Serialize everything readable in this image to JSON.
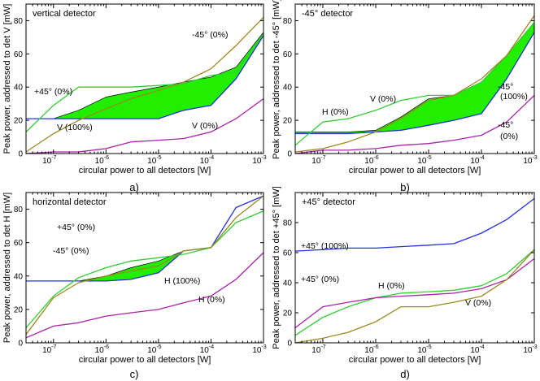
{
  "colors": {
    "blue": "#2233dd",
    "green": "#33cc33",
    "olive": "#998a22",
    "purple": "#aa22aa",
    "fill": "#22ee00"
  },
  "chart_data": [
    {
      "type": "line",
      "panel_label": "a)",
      "title": "vertical detector",
      "xlabel": "circular power to all detectors [W]",
      "ylabel": "Peak power, addressed to det V [mW]",
      "x_scale": "log",
      "xlim": [
        3e-08,
        0.001
      ],
      "ylim": [
        0,
        90
      ],
      "yticks": [
        0,
        20,
        40,
        60,
        80
      ],
      "xticks": [
        {
          "base": "10",
          "exp": "-7"
        },
        {
          "base": "10",
          "exp": "-6"
        },
        {
          "base": "10",
          "exp": "-5"
        },
        {
          "base": "10",
          "exp": "-4"
        },
        {
          "base": "10",
          "exp": "-3"
        }
      ],
      "x": [
        3e-08,
        1e-07,
        3e-07,
        1e-06,
        3e-06,
        1e-05,
        3e-05,
        0.0001,
        0.0003,
        0.001
      ],
      "series": [
        {
          "name": "V (100%)",
          "color": "blue",
          "values": [
            21,
            21,
            21,
            21,
            21,
            21,
            26,
            29,
            45,
            71
          ]
        },
        {
          "name": "+45° (0%)",
          "color": "green",
          "values": [
            13,
            29,
            40,
            40,
            40,
            41,
            42,
            47,
            49,
            72
          ]
        },
        {
          "name": "-45° (0%)",
          "color": "olive",
          "values": [
            1,
            12,
            20,
            27,
            33,
            38,
            43,
            51,
            65,
            82
          ]
        },
        {
          "name": "V (0%)",
          "color": "purple",
          "values": [
            0,
            1,
            1,
            3,
            7,
            8,
            9,
            13,
            21,
            33
          ]
        }
      ],
      "fill_between": {
        "upper": [
          21,
          21,
          26,
          34,
          37,
          40,
          43,
          46,
          52,
          73
        ],
        "lower": [
          21,
          21,
          21,
          21,
          21,
          21,
          26,
          29,
          45,
          71
        ]
      },
      "annotations": [
        "V (100%)",
        "+45° (0%)",
        "-45° (0%)",
        "V (0%)"
      ]
    },
    {
      "type": "line",
      "panel_label": "b)",
      "title": "-45° detector",
      "xlabel": "circular power to all detectors [W]",
      "ylabel": "Peak power, addressed to det -45° [mW]",
      "x_scale": "log",
      "xlim": [
        3e-08,
        0.001
      ],
      "ylim": [
        0,
        90
      ],
      "yticks": [
        0,
        20,
        40,
        60,
        80
      ],
      "xticks": [
        {
          "base": "10",
          "exp": "-7"
        },
        {
          "base": "10",
          "exp": "-6"
        },
        {
          "base": "10",
          "exp": "-5"
        },
        {
          "base": "10",
          "exp": "-4"
        },
        {
          "base": "10",
          "exp": "-3"
        }
      ],
      "x": [
        3e-08,
        1e-07,
        3e-07,
        1e-06,
        3e-06,
        1e-05,
        3e-05,
        0.0001,
        0.0003,
        0.001
      ],
      "series": [
        {
          "name": "-45° (100%)",
          "color": "blue",
          "values": [
            12,
            12,
            12,
            13,
            14,
            17,
            20,
            24,
            45,
            73
          ]
        },
        {
          "name": "H (0%)",
          "color": "green",
          "values": [
            5,
            19,
            21,
            26,
            32,
            35,
            35,
            43,
            59,
            79
          ]
        },
        {
          "name": "V (0%)",
          "color": "olive",
          "values": [
            1,
            3,
            7,
            13,
            21,
            32,
            35,
            45,
            59,
            83
          ]
        },
        {
          "name": "-45° (0%)",
          "color": "purple",
          "values": [
            0,
            2,
            2,
            3,
            5,
            6,
            8,
            11,
            19,
            35
          ]
        }
      ],
      "fill_between": {
        "upper": [
          13,
          13,
          13,
          14,
          22,
          33,
          35,
          43,
          59,
          79
        ],
        "lower": [
          12,
          12,
          12,
          13,
          14,
          17,
          20,
          24,
          45,
          73
        ]
      },
      "annotations": [
        "H (0%)",
        "V (0%)",
        "-45°",
        "(100%)",
        "-45°",
        "(0%)"
      ]
    },
    {
      "type": "line",
      "panel_label": "c)",
      "title": "horizontal detector",
      "xlabel": "circular power to all detectors [W]",
      "ylabel": "Peak power, addressed to det H [mW]",
      "x_scale": "log",
      "xlim": [
        3e-08,
        0.001
      ],
      "ylim": [
        0,
        90
      ],
      "yticks": [
        0,
        20,
        40,
        60,
        80
      ],
      "xticks": [
        {
          "base": "10",
          "exp": "-7"
        },
        {
          "base": "10",
          "exp": "-6"
        },
        {
          "base": "10",
          "exp": "-5"
        },
        {
          "base": "10",
          "exp": "-4"
        },
        {
          "base": "10",
          "exp": "-3"
        }
      ],
      "x": [
        3e-08,
        1e-07,
        3e-07,
        1e-06,
        3e-06,
        1e-05,
        3e-05,
        0.0001,
        0.0003,
        0.001
      ],
      "series": [
        {
          "name": "H (100%)",
          "color": "blue",
          "values": [
            37,
            37,
            37,
            37,
            38,
            42,
            55,
            57,
            81,
            88
          ]
        },
        {
          "name": "+45° (0%)",
          "color": "green",
          "values": [
            9,
            28,
            39,
            45,
            49,
            51,
            53,
            57,
            72,
            79
          ]
        },
        {
          "name": "-45° (0%)",
          "color": "olive",
          "values": [
            5,
            27,
            36,
            40,
            43,
            46,
            55,
            57,
            75,
            88
          ]
        },
        {
          "name": "H (0%)",
          "color": "purple",
          "values": [
            3,
            10,
            12,
            16,
            18,
            20,
            24,
            28,
            38,
            54
          ]
        }
      ],
      "fill_between": {
        "upper": [
          37,
          37,
          37,
          40,
          45,
          49,
          55
        ],
        "lower": [
          37,
          37,
          37,
          37,
          38,
          42,
          55
        ]
      },
      "annotations": [
        "+45° (0%)",
        "-45° (0%)",
        "H (100%)",
        "H (0%)"
      ]
    },
    {
      "type": "line",
      "panel_label": "d)",
      "title": "+45° detector",
      "xlabel": "circular power to all detectors [W]",
      "ylabel": "Peak power, addressed to det +45° [mW]",
      "x_scale": "log",
      "xlim": [
        3e-08,
        0.001
      ],
      "ylim": [
        0,
        100
      ],
      "yticks": [
        0,
        20,
        40,
        60,
        80
      ],
      "xticks": [
        {
          "base": "10",
          "exp": "-7"
        },
        {
          "base": "10",
          "exp": "-6"
        },
        {
          "base": "10",
          "exp": "-5"
        },
        {
          "base": "10",
          "exp": "-4"
        },
        {
          "base": "10",
          "exp": "-3"
        }
      ],
      "x": [
        3e-08,
        1e-07,
        3e-07,
        1e-06,
        3e-06,
        1e-05,
        3e-05,
        0.0001,
        0.0003,
        0.001
      ],
      "series": [
        {
          "name": "+45° (100%)",
          "color": "blue",
          "values": [
            61,
            62,
            63,
            63,
            64,
            65,
            66,
            73,
            82,
            96
          ]
        },
        {
          "name": "H (0%)",
          "color": "green",
          "values": [
            5,
            17,
            24,
            30,
            33,
            34,
            35,
            38,
            46,
            62
          ]
        },
        {
          "name": "+45° (0%)",
          "color": "purple",
          "values": [
            10,
            24,
            27,
            30,
            31,
            32,
            33,
            36,
            42,
            56
          ]
        },
        {
          "name": "V (0%)",
          "color": "olive",
          "values": [
            0,
            3,
            7,
            14,
            24,
            24,
            27,
            31,
            42,
            62
          ]
        }
      ],
      "fill_between": null,
      "annotations": [
        "+45° (100%)",
        "+45° (0%)",
        "H (0%)",
        "V (0%)"
      ]
    }
  ]
}
